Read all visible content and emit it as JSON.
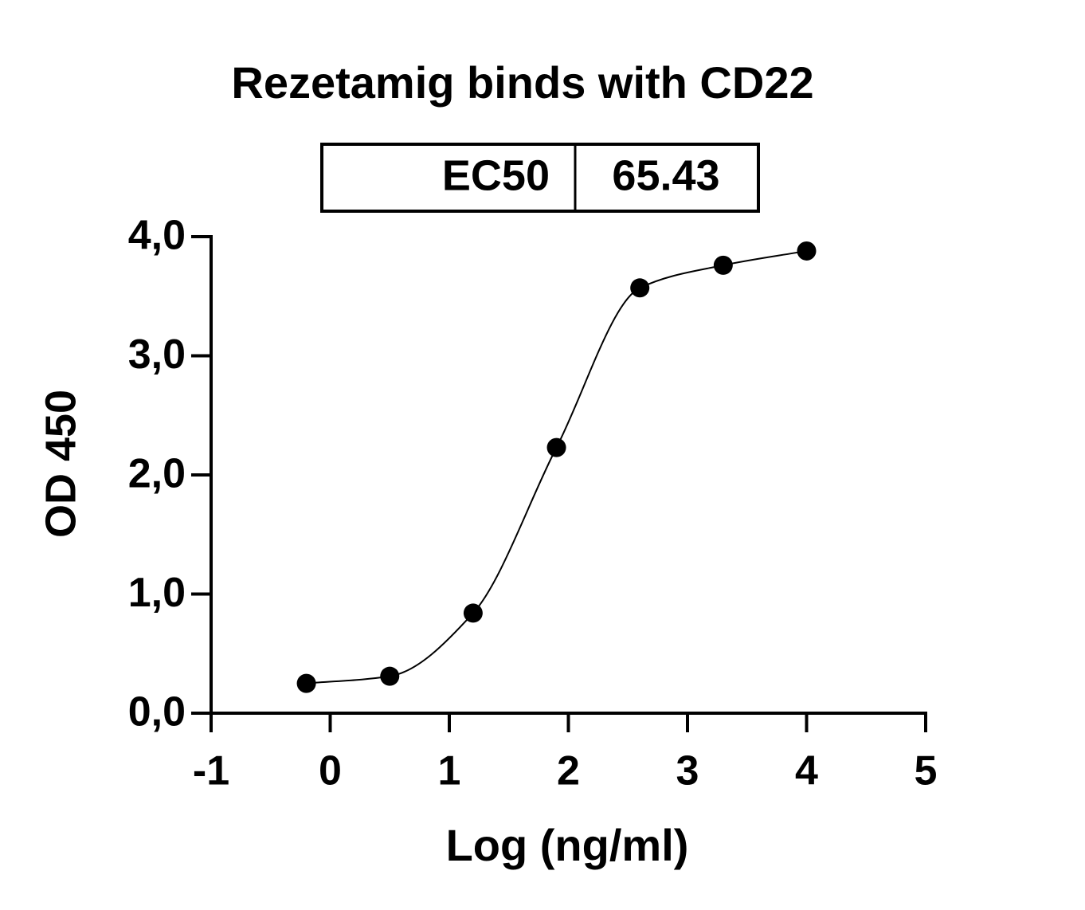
{
  "chart_data": {
    "type": "line",
    "title": "Rezetamig binds with CD22",
    "ec50_table": {
      "label": "EC50",
      "value": 65.43
    },
    "xlabel": "Log (ng/ml)",
    "ylabel": "OD 450",
    "x": [
      -0.2,
      0.5,
      1.2,
      1.9,
      2.6,
      3.3,
      4.0
    ],
    "series": [
      {
        "color": "#000000",
        "values": [
          0.25,
          0.31,
          0.84,
          2.23,
          3.57,
          3.76,
          3.88
        ]
      }
    ],
    "xlim": [
      -1,
      5
    ],
    "xticks": [
      -1,
      0,
      1,
      2,
      3,
      4,
      5
    ],
    "ylim": [
      0,
      4
    ],
    "yticks": [
      {
        "value": 0,
        "label": "0,0"
      },
      {
        "value": 1,
        "label": "1,0"
      },
      {
        "value": 2,
        "label": "2,0"
      },
      {
        "value": 3,
        "label": "3,0"
      },
      {
        "value": 4,
        "label": "4,0"
      }
    ],
    "grid": false
  }
}
